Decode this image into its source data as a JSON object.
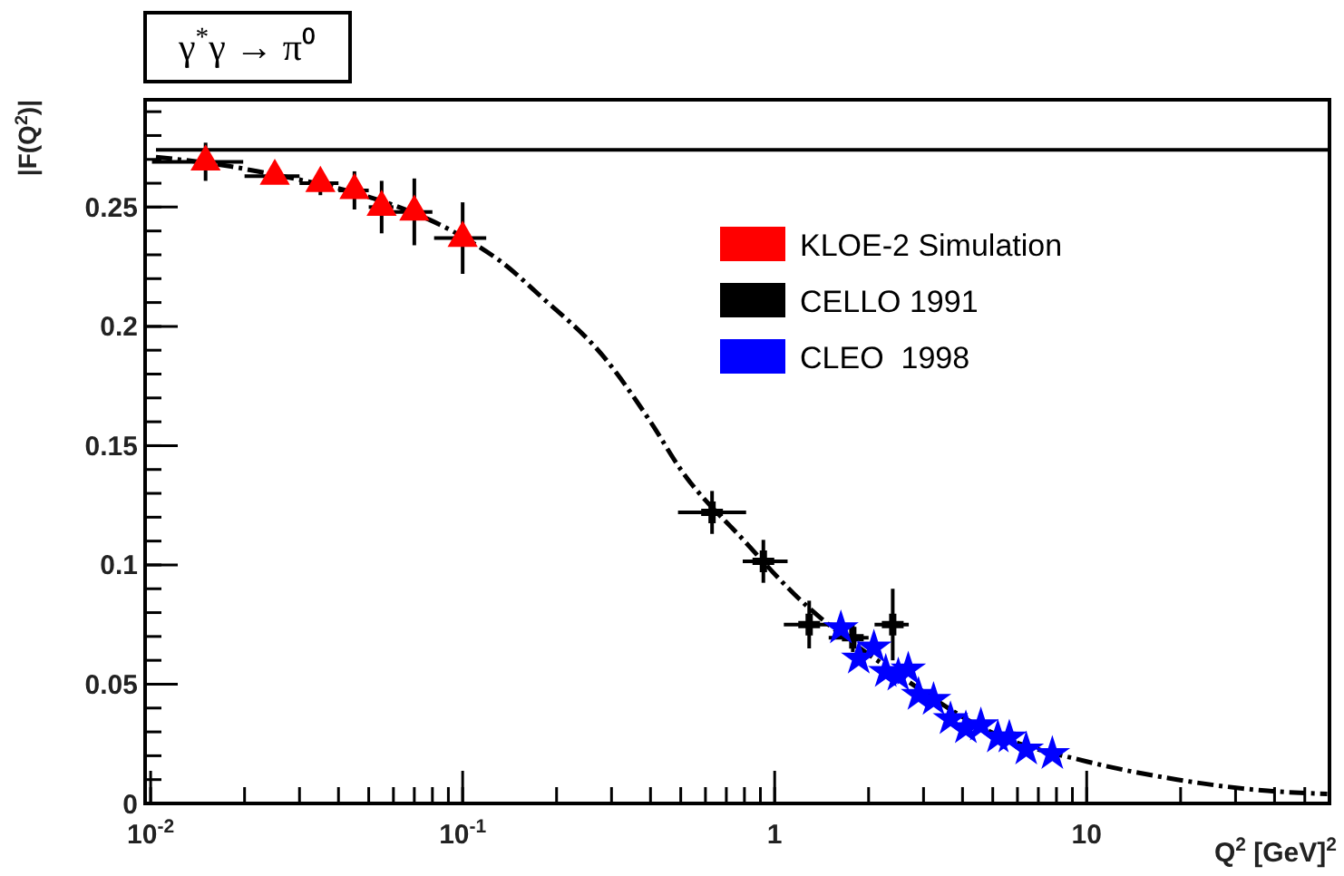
{
  "chart_data": {
    "type": "scatter",
    "title": "γ$^{*}$γ → π⁰",
    "xlabel": "Q$^{2}$ [GeV]$^{2}$",
    "ylabel": "|F(Q$^{2}$)|",
    "log": "x",
    "xlim": [
      0.0096,
      60
    ],
    "ylim": [
      0,
      0.295
    ],
    "xticks": [
      {
        "value": 0.01,
        "label": "10$^{-2}$"
      },
      {
        "value": 0.1,
        "label": "10$^{-1}$"
      },
      1,
      10
    ],
    "yticks": [
      0,
      0.05,
      0.1,
      0.15,
      0.2,
      0.25
    ],
    "grid": false,
    "legend": "top right",
    "ref_lines": [
      {
        "axis": "y",
        "value": 0.274,
        "color": "#000000"
      }
    ],
    "series": [
      {
        "type": "line",
        "color": "#000000",
        "line_style": "dashed",
        "marker": "none",
        "x": [
          0.0104,
          0.02,
          0.13,
          0.18,
          0.28,
          0.4,
          0.5,
          0.8,
          1.15,
          2.62,
          5.1,
          10,
          19.5,
          38,
          59
        ],
        "values": [
          0.271,
          0.266,
          0.228,
          0.212,
          0.188,
          0.16,
          0.14,
          0.11,
          0.088,
          0.052,
          0.029,
          0.0176,
          0.01,
          0.0053,
          0.004
        ]
      },
      {
        "name": "KLOE-2 Simulation",
        "color": "#ff0000",
        "marker": "triangle",
        "x": [
          0.015,
          0.025,
          0.035,
          0.045,
          0.055,
          0.07,
          0.1
        ],
        "values": [
          0.269,
          0.263,
          0.26,
          0.257,
          0.25,
          0.248,
          0.237
        ],
        "errors": [
          0.008,
          null,
          0.005,
          0.008,
          0.011,
          0.014,
          0.015
        ],
        "xerrors": [
          [
            0.0101,
            0.0198
          ],
          [
            0.02,
            0.03
          ],
          [
            0.03,
            0.04
          ],
          [
            0.04,
            0.05
          ],
          [
            0.05,
            0.06
          ],
          [
            0.059,
            0.08
          ],
          [
            0.081,
            0.119
          ]
        ]
      },
      {
        "name": "CELLO 1991",
        "color": "#000000",
        "marker": "cross",
        "x": [
          0.63,
          0.92,
          1.29,
          1.78,
          2.39
        ],
        "values": [
          0.122,
          0.1015,
          0.075,
          0.0695,
          0.075
        ],
        "errors": [
          0.009,
          0.009,
          0.01,
          0.006,
          0.015
        ],
        "xerrors": [
          [
            0.49,
            0.81
          ],
          [
            0.79,
            1.1
          ],
          [
            1.07,
            1.53
          ],
          [
            1.49,
            2.0
          ],
          [
            2.09,
            2.69
          ]
        ]
      },
      {
        "name": "CLEO  1998",
        "color": "#0000ff",
        "marker": "star",
        "x": [
          1.63,
          1.86,
          2.08,
          2.27,
          2.49,
          2.68,
          2.89,
          3.23,
          3.66,
          4.1,
          4.58,
          5.19,
          5.65,
          6.4,
          7.76
        ],
        "values": [
          0.0735,
          0.0608,
          0.0654,
          0.0552,
          0.0537,
          0.0562,
          0.0456,
          0.0435,
          0.0354,
          0.0316,
          0.0328,
          0.0277,
          0.0277,
          0.0227,
          0.0208
        ]
      }
    ]
  }
}
